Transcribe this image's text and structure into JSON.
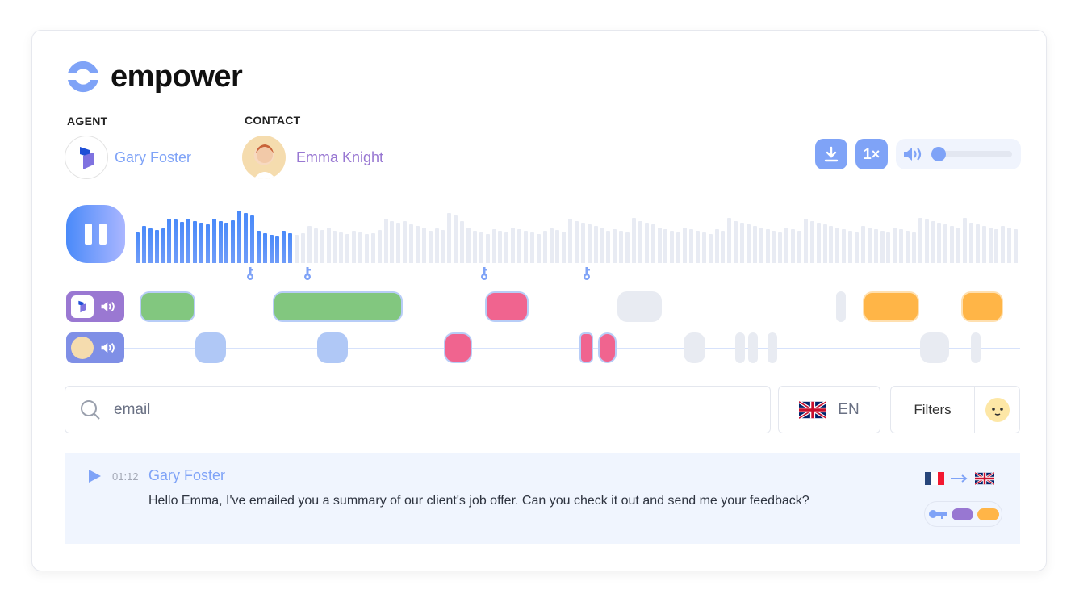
{
  "brand": {
    "name": "empower",
    "color": "#7fa3f7"
  },
  "agent": {
    "label": "AGENT",
    "name": "Gary Foster",
    "name_color": "#7fa3f7",
    "avatar_icon": "dynamics-logo-icon"
  },
  "contact": {
    "label": "CONTACT",
    "name": "Emma Knight",
    "name_color": "#9877d2",
    "avatar_icon": "person-photo"
  },
  "controls": {
    "download_icon": "download-icon",
    "speed_label": "1×",
    "volume_icon": "speaker-icon",
    "volume_level": 0
  },
  "player": {
    "state": "playing",
    "button_icon": "pause-icon",
    "progress": 0.175
  },
  "tracks": {
    "agent_icon": "speaker-icon",
    "contact_icon": "speaker-icon",
    "marker_icon": "key-icon",
    "colors": {
      "positive": "#82c77f",
      "negative": "#f0648f",
      "neutral": "#e8ebf2",
      "contact": "#b0c8f6",
      "warning": "#ffb547"
    }
  },
  "search": {
    "placeholder": "email",
    "value": "email"
  },
  "language": {
    "code": "EN",
    "flag": "uk-flag-icon"
  },
  "filters": {
    "label": "Filters",
    "emoji_icon": "emoji-face-icon"
  },
  "transcript": [
    {
      "time": "01:12",
      "speaker": "Gary Foster",
      "text": "Hello Emma, I've emailed you a summary of our client's job offer. Can you check it out and send me your feedback?",
      "translation": {
        "from": "fr-flag-icon",
        "to": "uk-flag-icon"
      },
      "tags": [
        "key-icon",
        "purple-tag",
        "orange-tag"
      ]
    }
  ]
}
